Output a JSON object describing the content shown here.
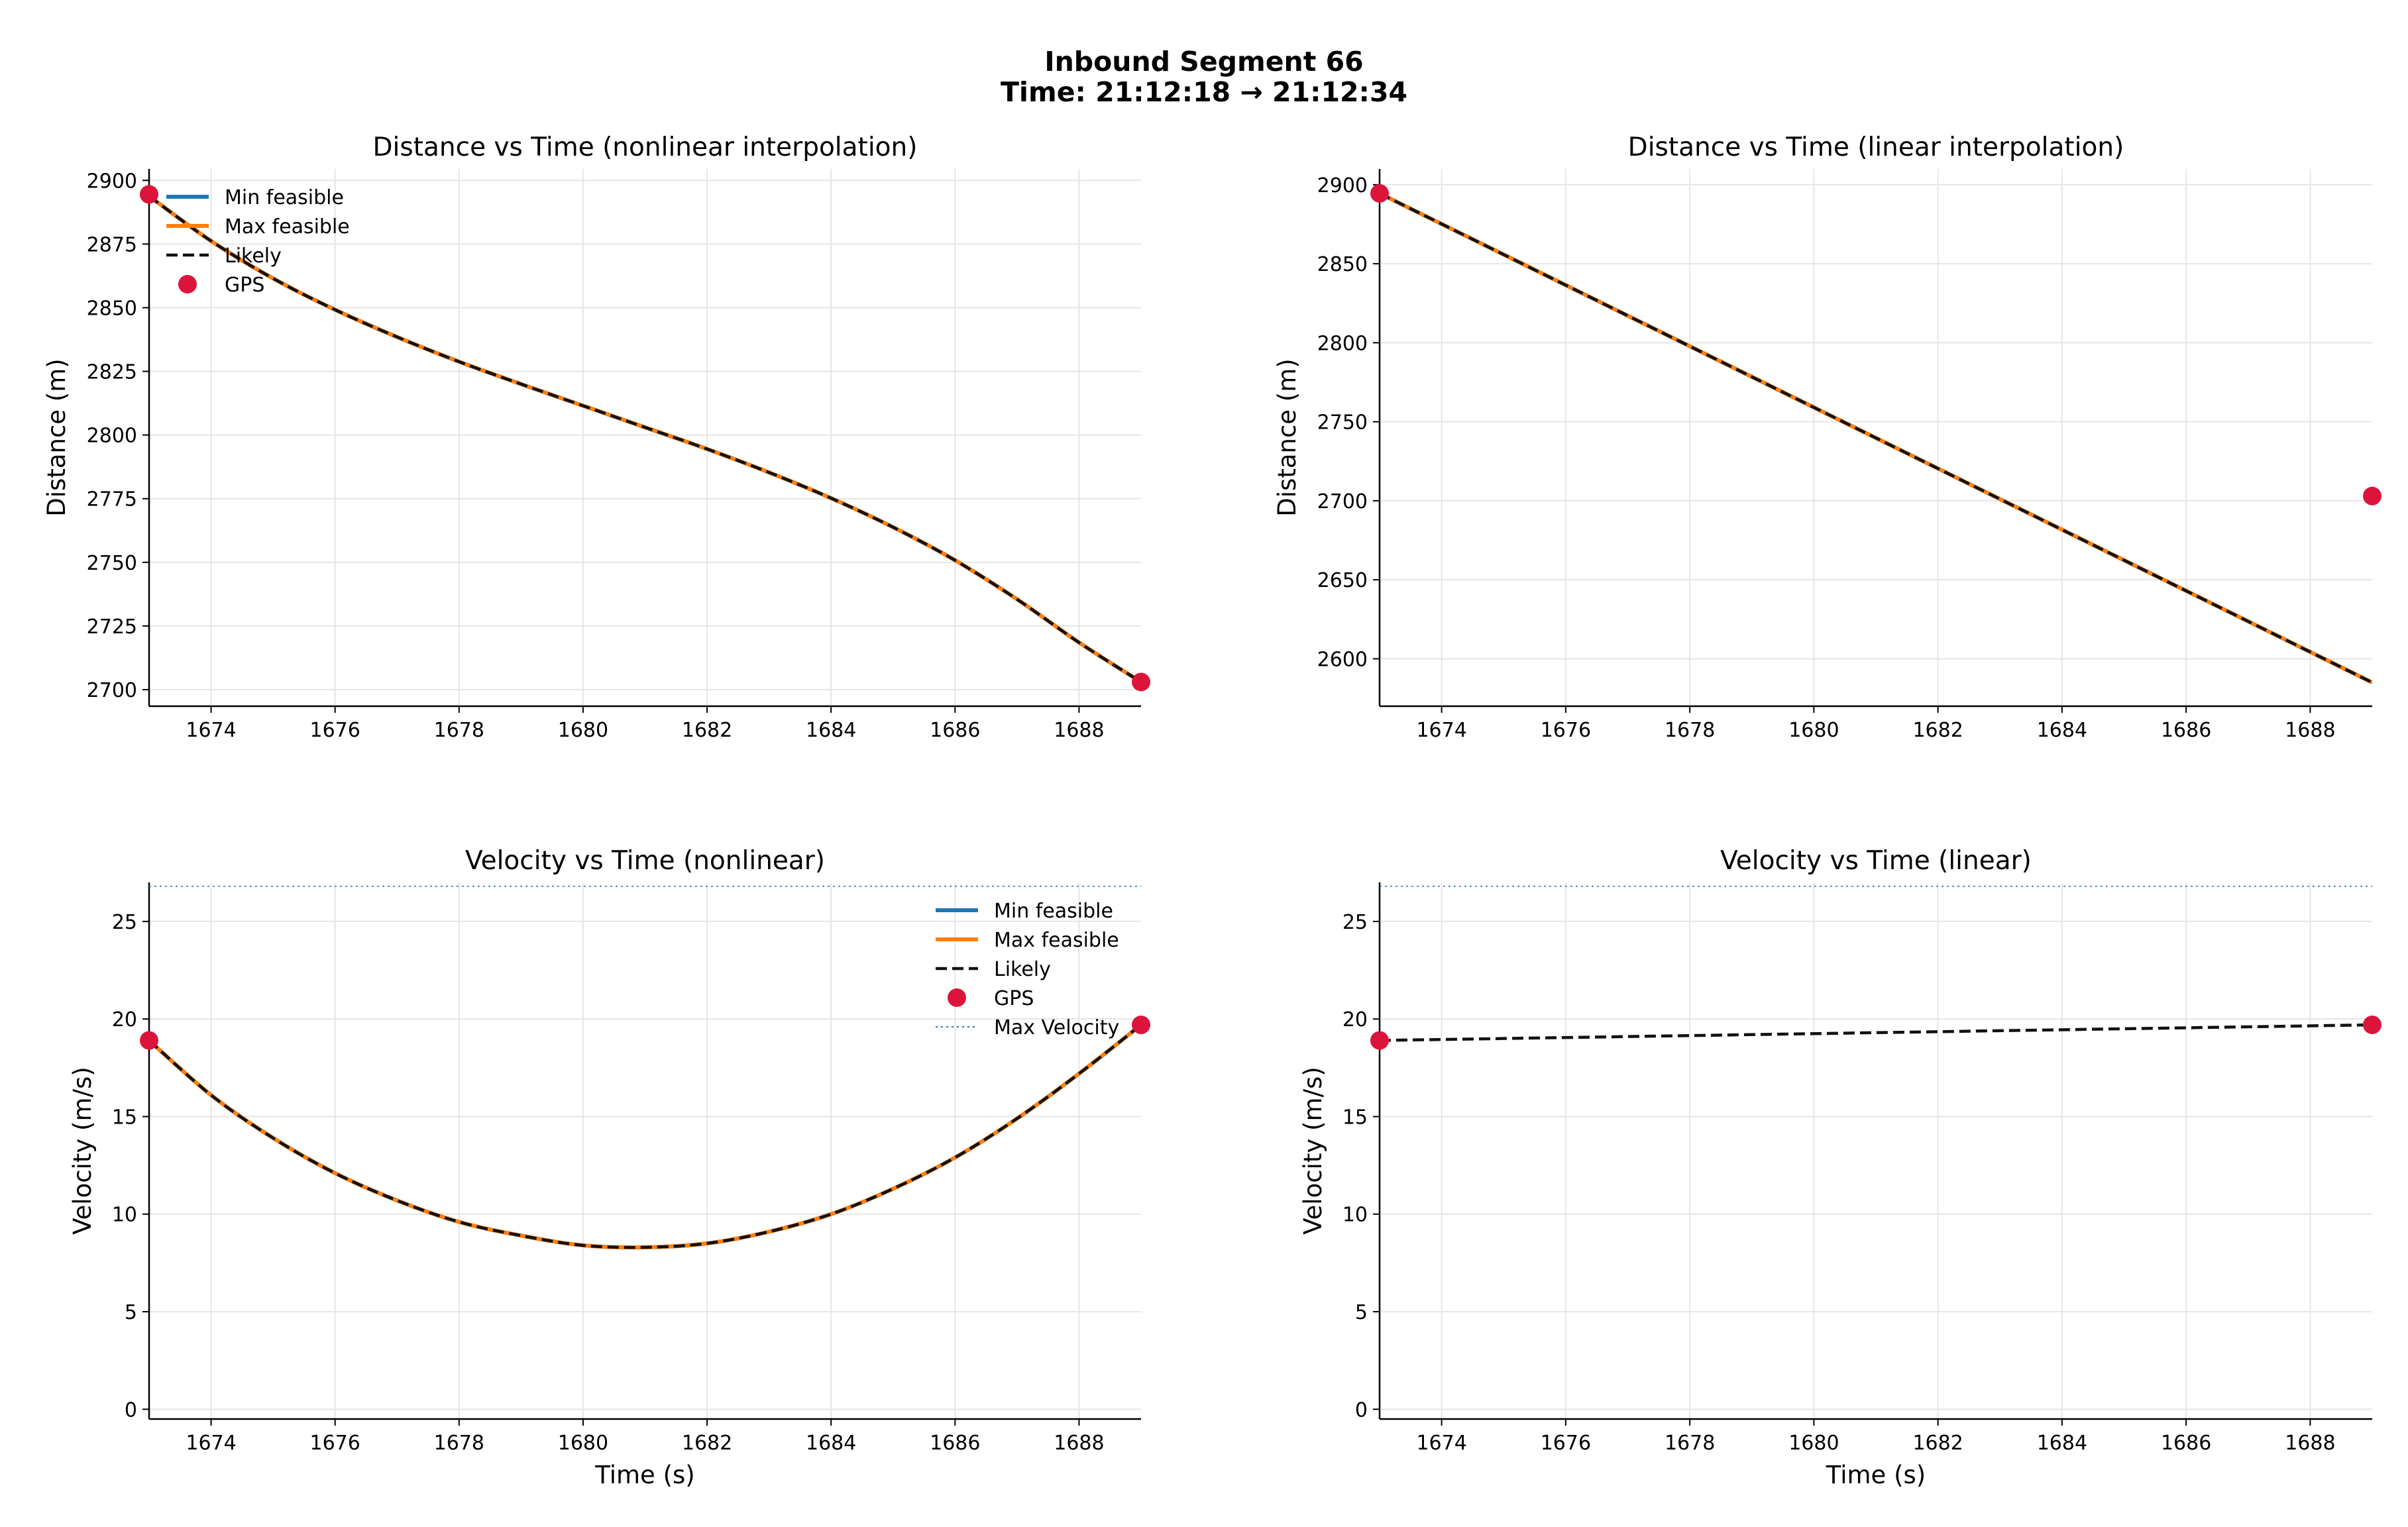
{
  "figure": {
    "title_line1": "Inbound Segment 66",
    "title_line2": "Time: 21:12:18 → 21:12:34"
  },
  "colors": {
    "min_feasible": "#1f77b4",
    "max_feasible": "#ff7f0e",
    "likely": "#111111",
    "gps": "#dc143c",
    "max_velocity": "#1f77b4",
    "grid": "#e6e6e6"
  },
  "chart_data": [
    {
      "type": "line",
      "id": "dist-nonlinear",
      "title": "Distance vs Time (nonlinear interpolation)",
      "xlabel": "",
      "ylabel": "Distance (m)",
      "xlim": [
        1673,
        1689
      ],
      "ylim": [
        2693.5,
        2904.5
      ],
      "xticks": [
        1674,
        1676,
        1678,
        1680,
        1682,
        1684,
        1686,
        1688
      ],
      "yticks": [
        2700,
        2725,
        2750,
        2775,
        2800,
        2825,
        2850,
        2875,
        2900
      ],
      "grid": true,
      "legend": {
        "placement": "upper-left",
        "entries": [
          "Min feasible",
          "Max feasible",
          "Likely",
          "GPS"
        ]
      },
      "x": [
        1673,
        1674,
        1675,
        1676,
        1677,
        1678,
        1679,
        1680,
        1681,
        1682,
        1683,
        1684,
        1685,
        1686,
        1687,
        1688,
        1689
      ],
      "series": [
        {
          "name": "Min feasible",
          "y": [
            2893.8,
            2876.2,
            2861.5,
            2849.2,
            2838.5,
            2828.8,
            2820.0,
            2811.5,
            2803.0,
            2794.5,
            2785.3,
            2775.2,
            2763.8,
            2750.8,
            2735.5,
            2718.5,
            2703.0
          ]
        },
        {
          "name": "Max feasible",
          "y": [
            2893.8,
            2876.2,
            2861.5,
            2849.2,
            2838.5,
            2828.8,
            2820.0,
            2811.5,
            2803.0,
            2794.5,
            2785.3,
            2775.2,
            2763.8,
            2750.8,
            2735.5,
            2718.5,
            2703.0
          ]
        },
        {
          "name": "Likely",
          "y": [
            2893.8,
            2876.2,
            2861.5,
            2849.2,
            2838.5,
            2828.8,
            2820.0,
            2811.5,
            2803.0,
            2794.5,
            2785.3,
            2775.2,
            2763.8,
            2750.8,
            2735.5,
            2718.5,
            2703.0
          ]
        }
      ],
      "gps": {
        "name": "GPS",
        "x": [
          1673,
          1689
        ],
        "y": [
          2894.5,
          2703.0
        ]
      }
    },
    {
      "type": "line",
      "id": "dist-linear",
      "title": "Distance vs Time (linear interpolation)",
      "xlabel": "",
      "ylabel": "Distance (m)",
      "xlim": [
        1673,
        1689
      ],
      "ylim": [
        2570,
        2910
      ],
      "xticks": [
        1674,
        1676,
        1678,
        1680,
        1682,
        1684,
        1686,
        1688
      ],
      "yticks": [
        2600,
        2650,
        2700,
        2750,
        2800,
        2850,
        2900
      ],
      "grid": true,
      "legend": null,
      "x": [
        1673,
        1689
      ],
      "series": [
        {
          "name": "Min feasible",
          "y": [
            2894.5,
            2585.0
          ]
        },
        {
          "name": "Max feasible",
          "y": [
            2894.5,
            2585.0
          ]
        },
        {
          "name": "Likely",
          "y": [
            2894.5,
            2585.0
          ]
        }
      ],
      "gps": {
        "name": "GPS",
        "x": [
          1673,
          1689
        ],
        "y": [
          2894.5,
          2703.0
        ]
      }
    },
    {
      "type": "line",
      "id": "vel-nonlinear",
      "title": "Velocity vs Time (nonlinear)",
      "xlabel": "Time (s)",
      "ylabel": "Velocity (m/s)",
      "xlim": [
        1673,
        1689
      ],
      "ylim": [
        -0.5,
        27.0
      ],
      "xticks": [
        1674,
        1676,
        1678,
        1680,
        1682,
        1684,
        1686,
        1688
      ],
      "yticks": [
        0,
        5,
        10,
        15,
        20,
        25
      ],
      "grid": true,
      "legend": {
        "placement": "upper-right",
        "entries": [
          "Min feasible",
          "Max feasible",
          "Likely",
          "GPS",
          "Max Velocity"
        ]
      },
      "x": [
        1673,
        1674,
        1675,
        1676,
        1677,
        1678,
        1679,
        1680,
        1681,
        1682,
        1683,
        1684,
        1685,
        1686,
        1687,
        1688,
        1689
      ],
      "series": [
        {
          "name": "Min feasible",
          "y": [
            18.9,
            16.1,
            13.9,
            12.1,
            10.7,
            9.6,
            8.9,
            8.4,
            8.3,
            8.5,
            9.1,
            10.0,
            11.3,
            12.9,
            14.9,
            17.2,
            19.7
          ]
        },
        {
          "name": "Max feasible",
          "y": [
            18.9,
            16.1,
            13.9,
            12.1,
            10.7,
            9.6,
            8.9,
            8.4,
            8.3,
            8.5,
            9.1,
            10.0,
            11.3,
            12.9,
            14.9,
            17.2,
            19.7
          ]
        },
        {
          "name": "Likely",
          "y": [
            18.9,
            16.1,
            13.9,
            12.1,
            10.7,
            9.6,
            8.9,
            8.4,
            8.3,
            8.5,
            9.1,
            10.0,
            11.3,
            12.9,
            14.9,
            17.2,
            19.7
          ]
        }
      ],
      "gps": {
        "name": "GPS",
        "x": [
          1673,
          1689
        ],
        "y": [
          18.9,
          19.7
        ]
      },
      "max_velocity": {
        "name": "Max Velocity",
        "y": 26.8
      }
    },
    {
      "type": "line",
      "id": "vel-linear",
      "title": "Velocity vs Time (linear)",
      "xlabel": "Time (s)",
      "ylabel": "Velocity (m/s)",
      "xlim": [
        1673,
        1689
      ],
      "ylim": [
        -0.5,
        27.0
      ],
      "xticks": [
        1674,
        1676,
        1678,
        1680,
        1682,
        1684,
        1686,
        1688
      ],
      "yticks": [
        0,
        5,
        10,
        15,
        20,
        25
      ],
      "grid": true,
      "legend": null,
      "x": [
        1673,
        1689
      ],
      "series": [
        {
          "name": "Likely",
          "y": [
            18.9,
            19.7
          ]
        }
      ],
      "gps": {
        "name": "GPS",
        "x": [
          1673,
          1689
        ],
        "y": [
          18.9,
          19.7
        ]
      },
      "max_velocity": {
        "name": "Max Velocity",
        "y": 26.8
      }
    }
  ]
}
